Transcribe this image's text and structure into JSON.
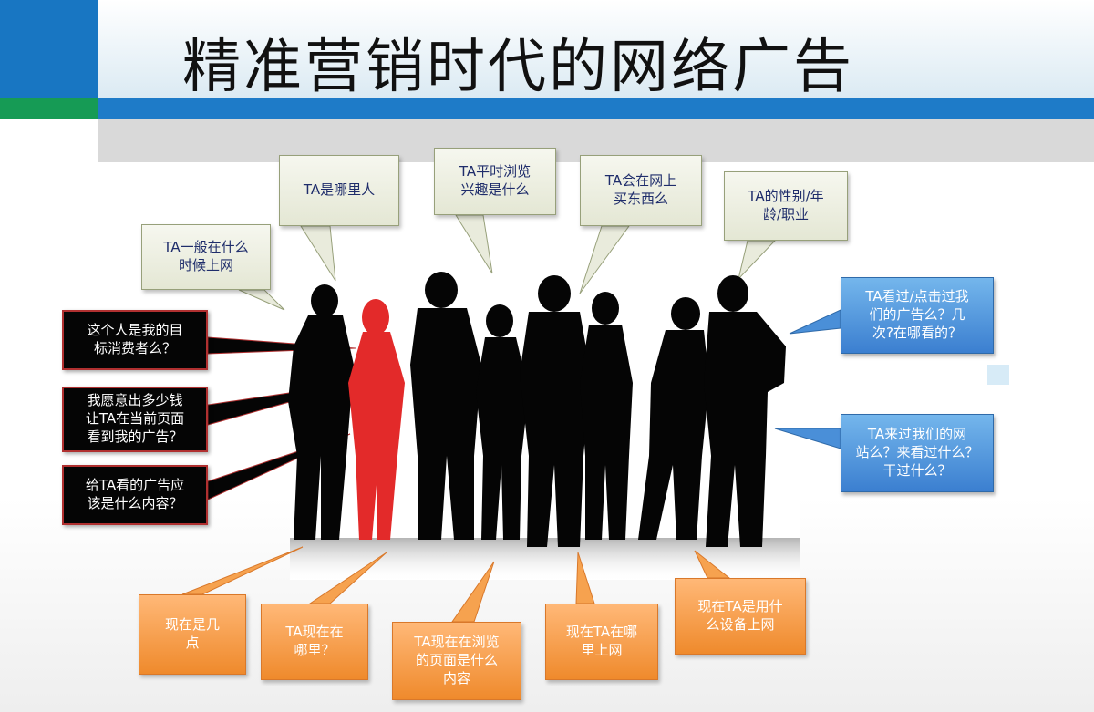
{
  "slide": {
    "title": "精准营销时代的网络广告",
    "accent_colors": {
      "header_blue": "#1876c2",
      "header_green": "#169b55",
      "header_gray": "#d9d9d9",
      "highlight_red": "#e32a2a"
    }
  },
  "callouts": {
    "time_of_day": "TA一般在什么\n时候上网",
    "where_from": "TA是哪里人",
    "browse_interest": "TA平时浏览\n兴趣是什么",
    "buy_online": "TA会在网上\n买东西么",
    "gender_age_job": "TA的性别/年\n龄/职业",
    "target_consumer": "这个人是我的目\n标消费者么？",
    "spend_amount": "我愿意出多少钱\n让TA在当前页面\n看到我的广告？",
    "ad_content": "给TA看的广告应\n该是什么内容？",
    "seen_ad": "TA看过/点击过我\n们的广告么？几\n次?在哪看的？",
    "visited_site": "TA来过我们的网\n站么？来看过什么？\n干过什么？",
    "current_time": "现在是几\n点",
    "current_location": "TA现在在\n哪里？",
    "current_page": "TA现在在浏览\n的页面是什么\n内容",
    "current_network": "现在TA在哪\n里上网",
    "current_device": "现在TA是用什\n么设备上网"
  }
}
